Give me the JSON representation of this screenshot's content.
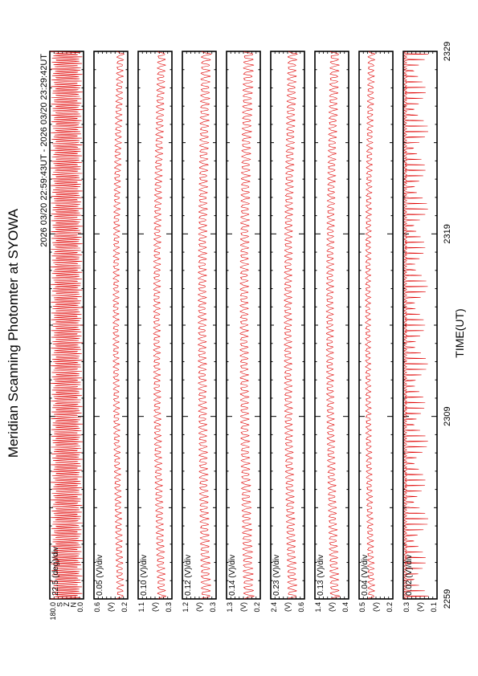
{
  "page": {
    "title": "Meridian Scanning Photomter at SYOWA",
    "time_range": "2026 03/20 22:59:43UT - 2026 03/20 23:29:42UT",
    "xlabel": "TIME(UT)"
  },
  "chart_data": {
    "type": "line",
    "title": "Meridian Scanning Photomter at SYOWA",
    "subtitle": "2026 03/20 22:59:43UT - 2026 03/20 23:29:42UT",
    "xlabel": "TIME(UT)",
    "x_ticks": [
      "2259",
      "2309",
      "2319",
      "2329"
    ],
    "x_range_minutes": [
      0,
      30
    ],
    "trace_color": "#e00000",
    "panels": [
      {
        "scale": "22.5 (deg)/div",
        "unit": "",
        "ticks": [
          "180.0",
          "S",
          "Z",
          "N",
          "0.0"
        ],
        "ylim": [
          0,
          180
        ],
        "baseline": 0.5,
        "amplitude": 0.48,
        "trend": 0,
        "pattern": "scan"
      },
      {
        "scale": "0.05 (V)/div",
        "unit": "(V)",
        "ticks": [
          "0.6",
          "0.2"
        ],
        "ylim": [
          0.2,
          0.6
        ],
        "baseline": 0.72,
        "amplitude": 0.18,
        "trend": 0.12,
        "pattern": "osc"
      },
      {
        "scale": "0.10 (V)/div",
        "unit": "(V)",
        "ticks": [
          "1.1",
          "0.3"
        ],
        "ylim": [
          0.3,
          1.1
        ],
        "baseline": 0.62,
        "amplitude": 0.22,
        "trend": 0.15,
        "pattern": "osc"
      },
      {
        "scale": "0.12 (V)/div",
        "unit": "(V)",
        "ticks": [
          "1.2",
          "0.3"
        ],
        "ylim": [
          0.3,
          1.2
        ],
        "baseline": 0.6,
        "amplitude": 0.26,
        "trend": 0.12,
        "pattern": "osc"
      },
      {
        "scale": "0.14 (V)/div",
        "unit": "(V)",
        "ticks": [
          "1.3",
          "0.2"
        ],
        "ylim": [
          0.2,
          1.3
        ],
        "baseline": 0.55,
        "amplitude": 0.28,
        "trend": 0.15,
        "pattern": "osc"
      },
      {
        "scale": "0.23 (V)/div",
        "unit": "(V)",
        "ticks": [
          "2.4",
          "0.6"
        ],
        "ylim": [
          0.6,
          2.4
        ],
        "baseline": 0.55,
        "amplitude": 0.25,
        "trend": 0.15,
        "pattern": "osc"
      },
      {
        "scale": "0.13 (V)/div",
        "unit": "(V)",
        "ticks": [
          "1.4",
          "0.4"
        ],
        "ylim": [
          0.4,
          1.4
        ],
        "baseline": 0.5,
        "amplitude": 0.25,
        "trend": 0.18,
        "pattern": "osc"
      },
      {
        "scale": "0.04 (V)/div",
        "unit": "(V)",
        "ticks": [
          "0.5",
          "0.2"
        ],
        "ylim": [
          0.2,
          0.5
        ],
        "baseline": 0.3,
        "amplitude": 0.18,
        "trend": 0.2,
        "pattern": "osc"
      },
      {
        "scale": "0.02 (V)/div",
        "unit": "(V)",
        "ticks": [
          "0.3",
          "0.1"
        ],
        "ylim": [
          0.1,
          0.3
        ],
        "baseline": 0.25,
        "amplitude": 0.55,
        "trend": 0.05,
        "pattern": "spike"
      }
    ],
    "grid": false,
    "legend": "none"
  }
}
